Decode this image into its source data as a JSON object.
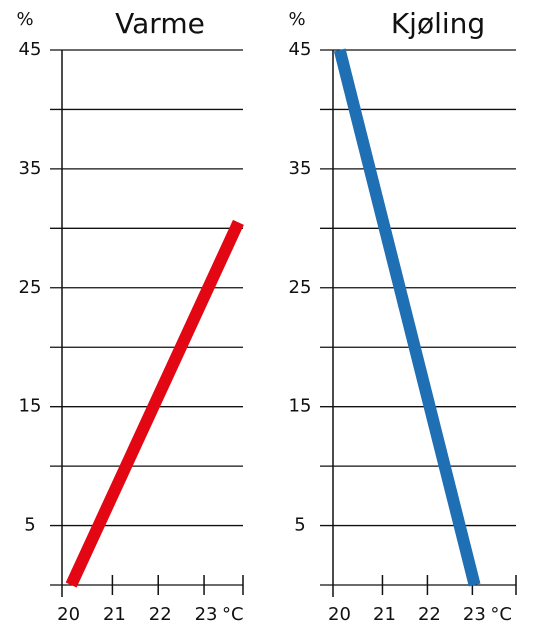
{
  "chart_data": [
    {
      "type": "line",
      "title": "Varme",
      "y_label": "%",
      "x_unit": "°C",
      "x": [
        20.1,
        23.75
      ],
      "values": [
        0,
        30.5
      ],
      "color": "#e30613",
      "xlim": [
        19.9,
        23.85
      ],
      "xticks": [
        20,
        21,
        22,
        23
      ],
      "ylim": [
        0,
        45
      ],
      "yticks": [
        5,
        15,
        25,
        35,
        45
      ],
      "minor_yticks": [
        0,
        10,
        20,
        30,
        40
      ],
      "grid": true
    },
    {
      "type": "line",
      "title": "Kjøling",
      "y_label": "%",
      "x_unit": "°C",
      "x": [
        20.05,
        23.05
      ],
      "values": [
        45,
        0
      ],
      "color": "#1f6fb5",
      "xlim": [
        19.9,
        23.97
      ],
      "xticks": [
        20,
        21,
        22,
        23
      ],
      "ylim": [
        0,
        45
      ],
      "yticks": [
        5,
        15,
        25,
        35,
        45
      ],
      "minor_yticks": [
        0,
        10,
        20,
        30,
        40
      ],
      "grid": true
    }
  ]
}
